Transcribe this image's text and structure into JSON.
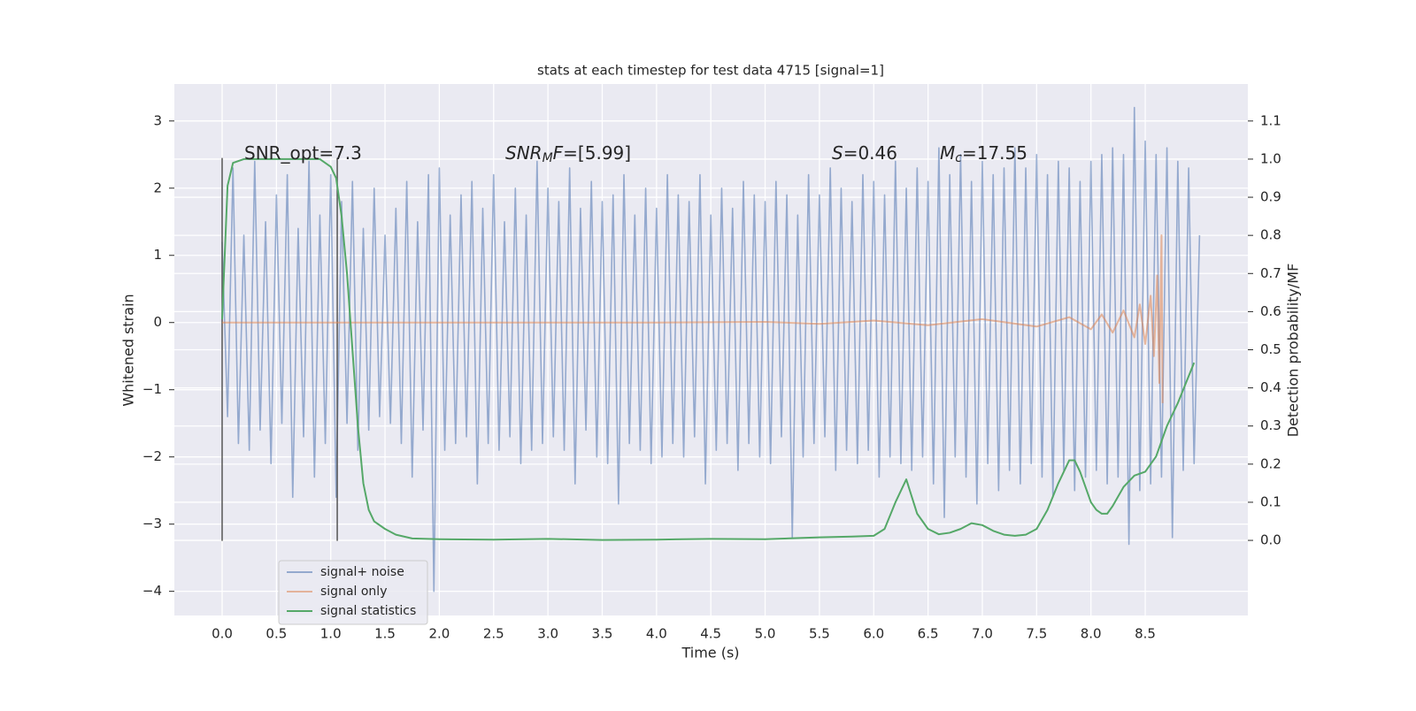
{
  "chart_data": {
    "type": "line",
    "title": "stats at each timestep for test data 4715 [signal=1]",
    "xlabel": "Time (s)",
    "ylabel": "Whitened strain",
    "y2label": "Detection probability/MF",
    "xlim": [
      -0.44,
      9.445
    ],
    "ylim": [
      -4.36,
      3.55
    ],
    "y2lim": [
      -0.197,
      1.197
    ],
    "xticks": [
      {
        "value": 0,
        "label": "0.0"
      },
      0.5,
      {
        "value": 1,
        "label": "1.0"
      },
      1.5,
      {
        "value": 2,
        "label": "2.0"
      },
      2.5,
      {
        "value": 3,
        "label": "3.0"
      },
      3.5,
      {
        "value": 4,
        "label": "4.0"
      },
      4.5,
      {
        "value": 5,
        "label": "5.0"
      },
      5.5,
      {
        "value": 6,
        "label": "6.0"
      },
      6.5,
      {
        "value": 7,
        "label": "7.0"
      },
      7.5,
      {
        "value": 8,
        "label": "8.0"
      },
      8.5
    ],
    "yticks": [
      {
        "value": -4,
        "label": "−4"
      },
      {
        "value": -3,
        "label": "−3"
      },
      {
        "value": -2,
        "label": "−2"
      },
      {
        "value": -1,
        "label": "−1"
      },
      0,
      1,
      2,
      3
    ],
    "y2ticks": [
      {
        "value": 0,
        "label": "0.0"
      },
      0.1,
      0.2,
      0.3,
      0.4,
      0.5,
      0.6,
      0.7,
      0.8,
      0.9,
      {
        "value": 1,
        "label": "1.0"
      },
      1.1
    ],
    "grid": true,
    "legend": "lower left",
    "vlines": [
      0,
      1.06
    ],
    "annotations": [
      {
        "parts": [
          "SNR_opt=7.3"
        ]
      },
      {
        "parts": [
          "SNR",
          "M",
          "F",
          "=[5.99]"
        ]
      },
      {
        "parts": [
          "S",
          "=0.46"
        ]
      },
      {
        "parts": [
          "M",
          "c",
          "=17.55"
        ]
      }
    ],
    "series": [
      {
        "name": "signal+ noise",
        "color": "#4c72b0",
        "x": [
          0,
          0.05,
          0.1,
          0.15,
          0.2,
          0.25,
          0.3,
          0.35,
          0.4,
          0.45,
          0.5,
          0.55,
          0.6,
          0.65,
          0.7,
          0.75,
          0.8,
          0.85,
          0.9,
          0.95,
          1,
          1.05,
          1.1,
          1.15,
          1.2,
          1.25,
          1.3,
          1.35,
          1.4,
          1.45,
          1.5,
          1.55,
          1.6,
          1.65,
          1.7,
          1.75,
          1.8,
          1.85,
          1.9,
          1.95,
          2,
          2.05,
          2.1,
          2.15,
          2.2,
          2.25,
          2.3,
          2.35,
          2.4,
          2.45,
          2.5,
          2.55,
          2.6,
          2.65,
          2.7,
          2.75,
          2.8,
          2.85,
          2.9,
          2.95,
          3,
          3.05,
          3.1,
          3.15,
          3.2,
          3.25,
          3.3,
          3.35,
          3.4,
          3.45,
          3.5,
          3.55,
          3.6,
          3.65,
          3.7,
          3.75,
          3.8,
          3.85,
          3.9,
          3.95,
          4,
          4.05,
          4.1,
          4.15,
          4.2,
          4.25,
          4.3,
          4.35,
          4.4,
          4.45,
          4.5,
          4.55,
          4.6,
          4.65,
          4.7,
          4.75,
          4.8,
          4.85,
          4.9,
          4.95,
          5,
          5.05,
          5.1,
          5.15,
          5.2,
          5.25,
          5.3,
          5.35,
          5.4,
          5.45,
          5.5,
          5.55,
          5.6,
          5.65,
          5.7,
          5.75,
          5.8,
          5.85,
          5.9,
          5.95,
          6,
          6.05,
          6.1,
          6.15,
          6.2,
          6.25,
          6.3,
          6.35,
          6.4,
          6.45,
          6.5,
          6.55,
          6.6,
          6.65,
          6.7,
          6.75,
          6.8,
          6.85,
          6.9,
          6.95,
          7,
          7.05,
          7.1,
          7.15,
          7.2,
          7.25,
          7.3,
          7.35,
          7.4,
          7.45,
          7.5,
          7.55,
          7.6,
          7.65,
          7.7,
          7.75,
          7.8,
          7.85,
          7.9,
          7.95,
          8,
          8.05,
          8.1,
          8.15,
          8.2,
          8.25,
          8.3,
          8.35,
          8.4,
          8.45,
          8.5,
          8.55,
          8.6,
          8.65,
          8.7,
          8.75,
          8.8,
          8.85,
          8.9,
          8.95,
          9
        ],
        "values": [
          1.2,
          -1.4,
          2.3,
          -1.8,
          1.3,
          -1.9,
          2.4,
          -1.6,
          1.5,
          -2.1,
          1.9,
          -1.5,
          2.2,
          -2.6,
          1.4,
          -1.7,
          2.4,
          -2.3,
          1.6,
          -1.8,
          2.2,
          -2.6,
          1.8,
          -1.5,
          2.1,
          -1.9,
          1.4,
          -1.6,
          2.0,
          -1.4,
          1.3,
          -1.5,
          1.7,
          -1.8,
          2.1,
          -2.3,
          1.5,
          -1.6,
          2.2,
          -4.0,
          2.3,
          -1.9,
          1.6,
          -1.8,
          1.9,
          -1.7,
          2.1,
          -2.4,
          1.7,
          -1.8,
          2.2,
          -1.9,
          1.5,
          -1.7,
          2.0,
          -2.1,
          1.6,
          -1.9,
          2.4,
          -1.8,
          2.0,
          -1.7,
          1.8,
          -1.9,
          2.3,
          -2.4,
          1.7,
          -1.6,
          2.1,
          -2.0,
          1.8,
          -2.1,
          1.9,
          -2.7,
          2.2,
          -1.8,
          1.6,
          -1.9,
          2.0,
          -2.1,
          1.7,
          -2.0,
          2.2,
          -1.8,
          1.9,
          -2.0,
          1.8,
          -1.7,
          2.2,
          -2.4,
          1.6,
          -1.9,
          2.0,
          -1.8,
          1.7,
          -2.2,
          2.1,
          -1.8,
          1.9,
          -2.0,
          1.8,
          -2.1,
          2.1,
          -1.7,
          1.9,
          -3.2,
          1.6,
          -2.0,
          2.2,
          -1.8,
          1.9,
          -1.7,
          2.3,
          -2.2,
          2.0,
          -1.9,
          1.8,
          -2.1,
          2.2,
          -1.9,
          2.1,
          -2.3,
          1.9,
          -2.0,
          2.4,
          -2.1,
          2.0,
          -2.2,
          2.3,
          -2.0,
          2.1,
          -2.4,
          2.6,
          -2.9,
          2.2,
          -2.0,
          2.5,
          -2.3,
          2.1,
          -2.7,
          2.4,
          -2.1,
          2.2,
          -2.5,
          2.3,
          -2.2,
          2.6,
          -2.4,
          2.3,
          -2.1,
          2.5,
          -2.3,
          2.2,
          -2.6,
          2.4,
          -2.2,
          2.3,
          -2.5,
          2.1,
          -2.3,
          2.4,
          -2.2,
          2.5,
          -2.4,
          2.6,
          -2.3,
          2.5,
          -3.3,
          3.2,
          -2.5,
          2.7,
          -2.4,
          2.5,
          -2.3,
          2.6,
          -3.2,
          2.4,
          -2.2,
          2.3,
          -2.1,
          1.3
        ]
      },
      {
        "name": "signal only",
        "color": "#dd8452",
        "x": [
          0,
          1,
          2,
          3,
          4,
          5,
          5.5,
          6,
          6.5,
          7,
          7.5,
          7.8,
          8,
          8.1,
          8.2,
          8.3,
          8.4,
          8.45,
          8.5,
          8.55,
          8.58,
          8.61,
          8.63,
          8.65,
          8.66
        ],
        "values": [
          0,
          0,
          0,
          0,
          0,
          0.01,
          -0.02,
          0.03,
          -0.04,
          0.05,
          -0.06,
          0.08,
          -0.1,
          0.12,
          -0.15,
          0.18,
          -0.22,
          0.27,
          -0.32,
          0.4,
          -0.5,
          0.7,
          -0.9,
          1.3,
          -1.2
        ]
      },
      {
        "name": "signal statistics",
        "color": "#55a868",
        "axis": "y2",
        "x": [
          0,
          0.05,
          0.1,
          0.2,
          0.4,
          0.6,
          0.8,
          0.9,
          1,
          1.05,
          1.1,
          1.15,
          1.2,
          1.25,
          1.3,
          1.35,
          1.4,
          1.5,
          1.6,
          1.75,
          2,
          2.5,
          3,
          3.5,
          4,
          4.5,
          5,
          5.5,
          5.8,
          6,
          6.1,
          6.2,
          6.3,
          6.4,
          6.5,
          6.6,
          6.7,
          6.8,
          6.9,
          7,
          7.1,
          7.2,
          7.3,
          7.4,
          7.5,
          7.6,
          7.7,
          7.8,
          7.85,
          7.9,
          8,
          8.05,
          8.1,
          8.15,
          8.2,
          8.3,
          8.4,
          8.5,
          8.6,
          8.7,
          8.8,
          8.95
        ],
        "values": [
          0.58,
          0.93,
          0.99,
          1.0,
          1.0,
          1.0,
          1.0,
          1.0,
          0.98,
          0.95,
          0.85,
          0.7,
          0.5,
          0.3,
          0.15,
          0.08,
          0.05,
          0.03,
          0.015,
          0.005,
          0.003,
          0.002,
          0.004,
          0.001,
          0.002,
          0.004,
          0.003,
          0.008,
          0.01,
          0.012,
          0.03,
          0.1,
          0.16,
          0.07,
          0.03,
          0.016,
          0.02,
          0.03,
          0.045,
          0.04,
          0.025,
          0.015,
          0.012,
          0.015,
          0.03,
          0.08,
          0.15,
          0.21,
          0.21,
          0.18,
          0.1,
          0.08,
          0.07,
          0.07,
          0.09,
          0.14,
          0.17,
          0.18,
          0.22,
          0.3,
          0.36,
          0.466
        ]
      }
    ]
  }
}
